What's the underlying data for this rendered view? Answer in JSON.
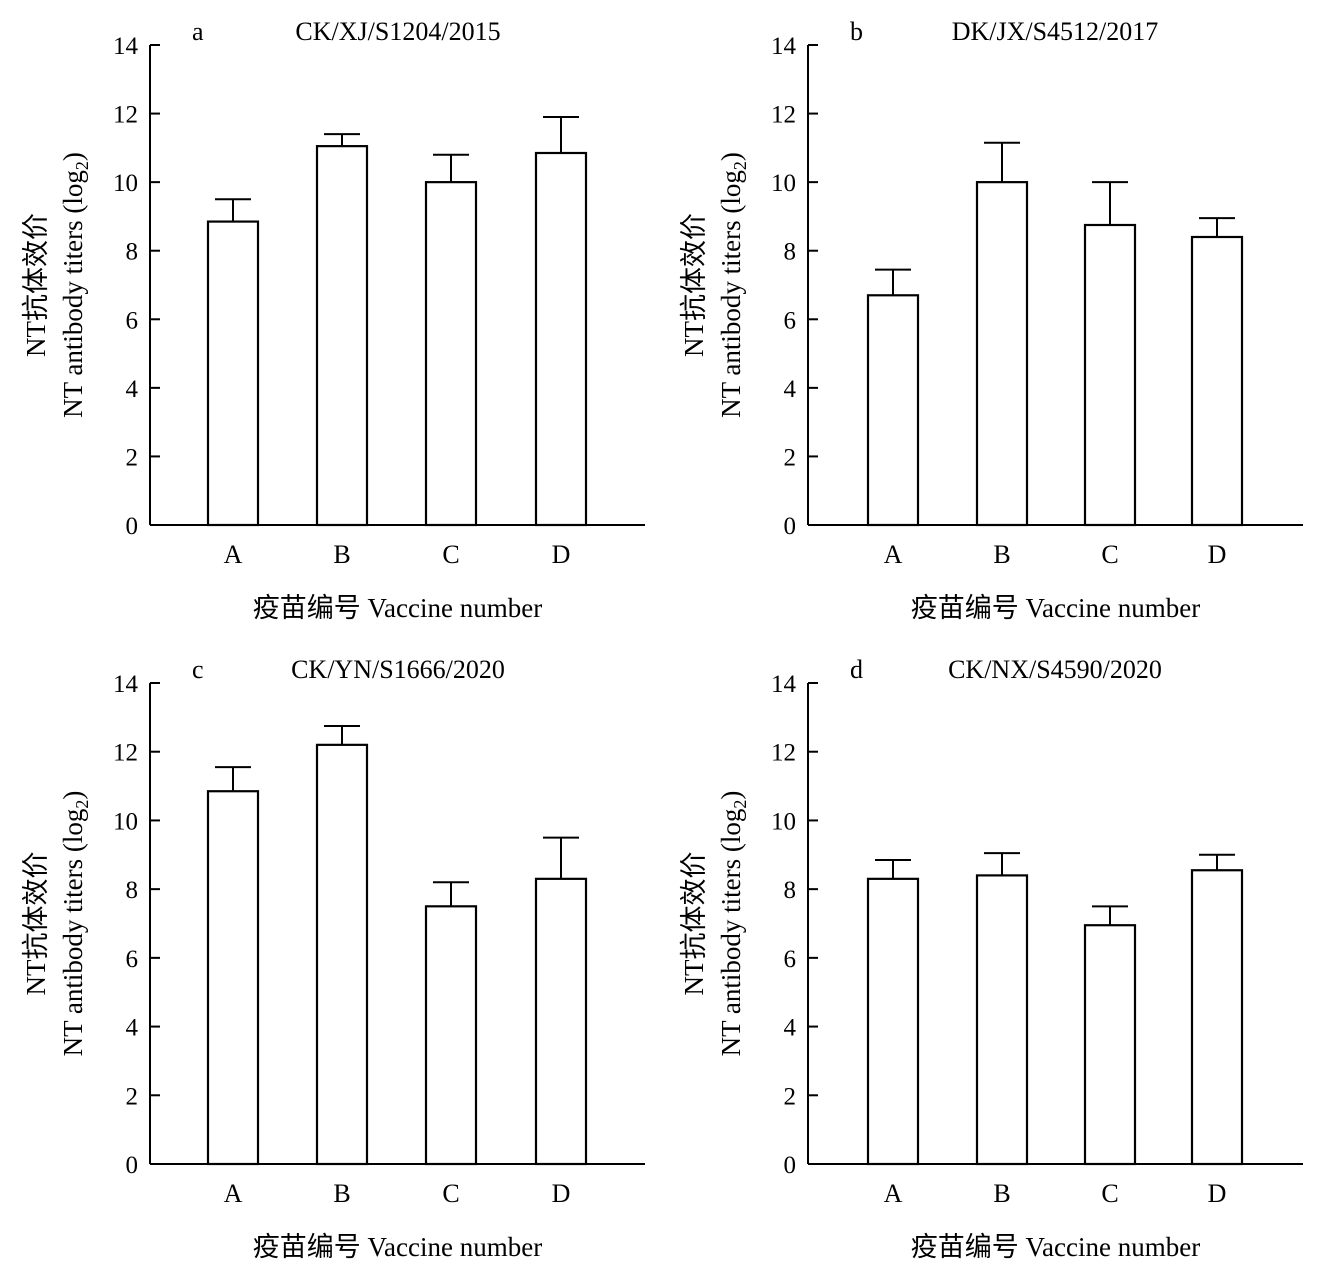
{
  "figure": {
    "y_title_zh": "NT抗体效价",
    "y_title_en": "NT antibody titers (log",
    "y_title_sub": "2",
    "y_title_close": ")",
    "x_title": "疫苗编号 Vaccine number"
  },
  "chart_data": [
    {
      "type": "bar",
      "panel": "a",
      "title": "CK/XJ/S1204/2015",
      "categories": [
        "A",
        "B",
        "C",
        "D"
      ],
      "values": [
        8.85,
        11.05,
        10.0,
        10.85
      ],
      "errors": [
        0.65,
        0.35,
        0.8,
        1.05
      ],
      "ylim": [
        0,
        14
      ],
      "yticks": [
        0,
        2,
        4,
        6,
        8,
        10,
        12,
        14
      ]
    },
    {
      "type": "bar",
      "panel": "b",
      "title": "DK/JX/S4512/2017",
      "categories": [
        "A",
        "B",
        "C",
        "D"
      ],
      "values": [
        6.7,
        10.0,
        8.75,
        8.4
      ],
      "errors": [
        0.75,
        1.15,
        1.25,
        0.55
      ],
      "ylim": [
        0,
        14
      ],
      "yticks": [
        0,
        2,
        4,
        6,
        8,
        10,
        12,
        14
      ]
    },
    {
      "type": "bar",
      "panel": "c",
      "title": "CK/YN/S1666/2020",
      "categories": [
        "A",
        "B",
        "C",
        "D"
      ],
      "values": [
        10.85,
        12.2,
        7.5,
        8.3
      ],
      "errors": [
        0.7,
        0.55,
        0.7,
        1.2
      ],
      "ylim": [
        0,
        14
      ],
      "yticks": [
        0,
        2,
        4,
        6,
        8,
        10,
        12,
        14
      ]
    },
    {
      "type": "bar",
      "panel": "d",
      "title": "CK/NX/S4590/2020",
      "categories": [
        "A",
        "B",
        "C",
        "D"
      ],
      "values": [
        8.3,
        8.4,
        6.95,
        8.55
      ],
      "errors": [
        0.55,
        0.65,
        0.55,
        0.45
      ],
      "ylim": [
        0,
        14
      ],
      "yticks": [
        0,
        2,
        4,
        6,
        8,
        10,
        12,
        14
      ]
    }
  ]
}
